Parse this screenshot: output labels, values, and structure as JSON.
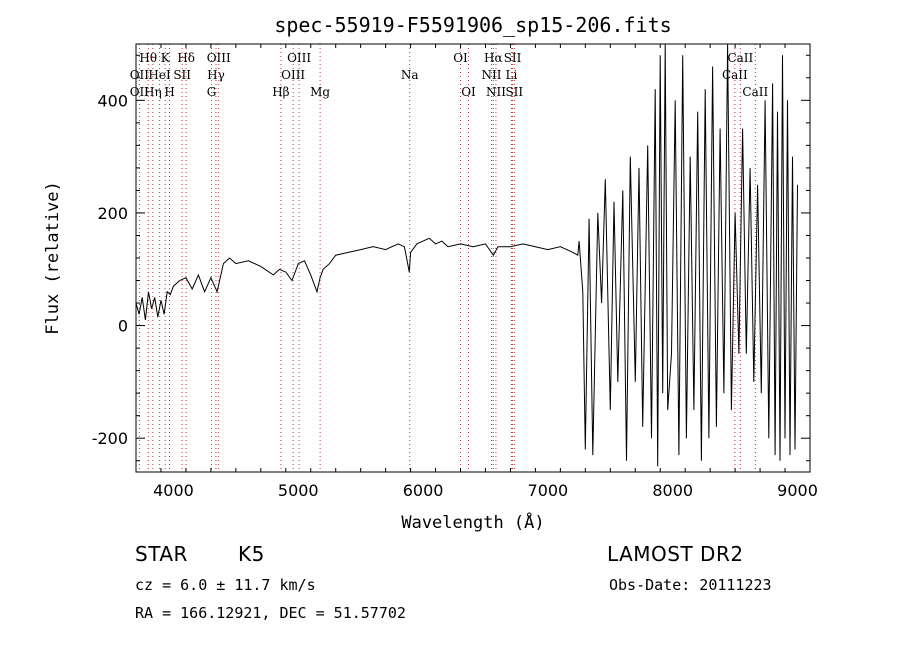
{
  "chart_data": {
    "type": "line",
    "title": "spec-55919-F5591906_sp15-206.fits",
    "xlabel": "Wavelength (Å)",
    "ylabel": "Flux (relative)",
    "xlim": [
      3700,
      9100
    ],
    "ylim": [
      -260,
      500
    ],
    "xticks": [
      4000,
      5000,
      6000,
      7000,
      8000,
      9000
    ],
    "yticks": [
      -200,
      0,
      200,
      400
    ],
    "grid": false,
    "line_color": "#000000",
    "marker_color": "#cc3333",
    "series": [
      {
        "x": [
          3700,
          3725,
          3750,
          3775,
          3800,
          3825,
          3850,
          3875,
          3900,
          3925,
          3950,
          3975,
          4000,
          4050,
          4100,
          4150,
          4200,
          4250,
          4300,
          4350,
          4400,
          4450,
          4500,
          4600,
          4700,
          4800,
          4850,
          4900,
          4950,
          5000,
          5050,
          5100,
          5150,
          5175,
          5200,
          5250,
          5300,
          5400,
          5500,
          5600,
          5700,
          5800,
          5850,
          5890,
          5900,
          5950,
          6000,
          6050,
          6100,
          6150,
          6200,
          6300,
          6400,
          6500,
          6563,
          6600,
          6700,
          6800,
          6900,
          7000,
          7100,
          7200,
          7240,
          7250,
          7280,
          7300,
          7330,
          7360,
          7400,
          7430,
          7460,
          7500,
          7530,
          7560,
          7600,
          7630,
          7660,
          7700,
          7730,
          7760,
          7800,
          7830,
          7860,
          7880,
          7900,
          7920,
          7940,
          7960,
          7990,
          8020,
          8050,
          8080,
          8110,
          8140,
          8170,
          8200,
          8230,
          8260,
          8290,
          8320,
          8350,
          8380,
          8410,
          8440,
          8470,
          8500,
          8530,
          8560,
          8590,
          8620,
          8650,
          8680,
          8710,
          8740,
          8770,
          8800,
          8820,
          8840,
          8860,
          8880,
          8900,
          8920,
          8940,
          8960,
          8980,
          9000
        ],
        "y": [
          40,
          20,
          50,
          10,
          60,
          30,
          50,
          15,
          45,
          20,
          60,
          55,
          70,
          80,
          85,
          65,
          90,
          60,
          85,
          60,
          110,
          120,
          110,
          115,
          105,
          90,
          100,
          95,
          80,
          110,
          115,
          90,
          60,
          85,
          100,
          110,
          125,
          130,
          135,
          140,
          135,
          145,
          140,
          95,
          130,
          145,
          150,
          155,
          145,
          150,
          140,
          145,
          140,
          145,
          125,
          140,
          140,
          145,
          140,
          135,
          140,
          130,
          125,
          150,
          60,
          -220,
          190,
          -230,
          200,
          40,
          260,
          -150,
          220,
          -100,
          240,
          -240,
          300,
          -100,
          280,
          -180,
          320,
          -200,
          420,
          -250,
          480,
          -120,
          500,
          -150,
          -50,
          400,
          -230,
          480,
          -200,
          300,
          -150,
          380,
          -240,
          420,
          -200,
          460,
          -180,
          350,
          -120,
          500,
          -150,
          200,
          -50,
          350,
          -50,
          280,
          -100,
          250,
          -120,
          400,
          -200,
          430,
          -230,
          380,
          -240,
          480,
          -200,
          400,
          -230,
          300,
          -220,
          250
        ]
      }
    ],
    "lines_top": [
      {
        "label": "Hθ",
        "x": 3798
      },
      {
        "label": "K",
        "x": 3934
      },
      {
        "label": "Hδ",
        "x": 4102
      },
      {
        "label": "OIII",
        "x": 4363
      },
      {
        "label": "OIII",
        "x": 5007
      },
      {
        "label": "OI",
        "x": 6300
      },
      {
        "label": "Hα",
        "x": 6563
      },
      {
        "label": "SII",
        "x": 6717
      },
      {
        "label": "CaII",
        "x": 8542
      }
    ],
    "lines_mid": [
      {
        "label": "OII",
        "x": 3727
      },
      {
        "label": "HeI",
        "x": 3889
      },
      {
        "label": "SII",
        "x": 4070
      },
      {
        "label": "Hγ",
        "x": 4341
      },
      {
        "label": "OIII",
        "x": 4959
      },
      {
        "label": "Na",
        "x": 5893
      },
      {
        "label": "NII",
        "x": 6548
      },
      {
        "label": "Li",
        "x": 6708
      },
      {
        "label": "CaII",
        "x": 8498
      }
    ],
    "lines_bot": [
      {
        "label": "OII",
        "x": 3727
      },
      {
        "label": "Hη",
        "x": 3835
      },
      {
        "label": "H",
        "x": 3969
      },
      {
        "label": "G",
        "x": 4305
      },
      {
        "label": "Hβ",
        "x": 4861
      },
      {
        "label": "Mg",
        "x": 5175
      },
      {
        "label": "OI",
        "x": 6364
      },
      {
        "label": "NII",
        "x": 6584
      },
      {
        "label": "SII",
        "x": 6731
      },
      {
        "label": "CaII",
        "x": 8662
      }
    ]
  },
  "info": {
    "class": "STAR",
    "subclass": "K5",
    "survey": "LAMOST DR2",
    "cz": "cz = 6.0 ± 11.7 km/s",
    "obs_date": "Obs-Date: 20111223",
    "radec": "RA = 166.12921, DEC =  51.57702"
  }
}
